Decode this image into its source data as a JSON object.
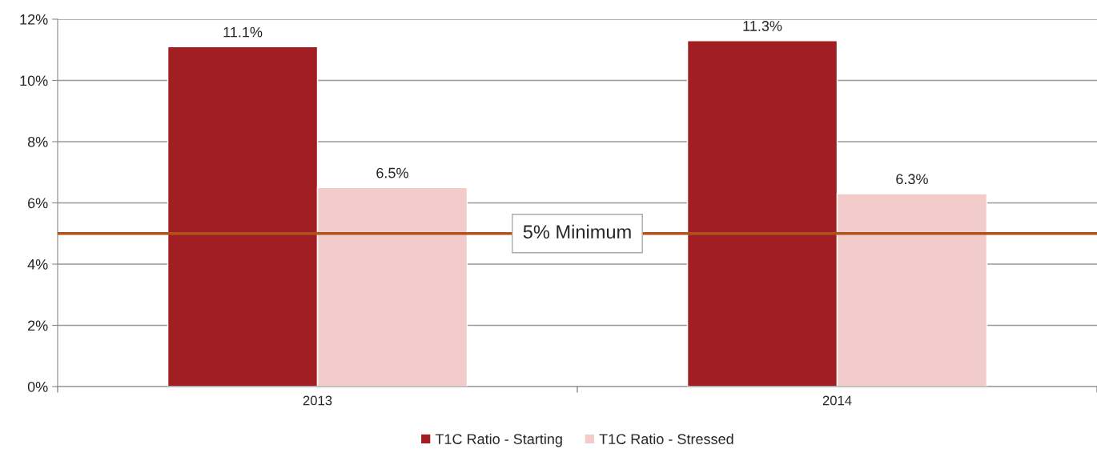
{
  "chart_data": {
    "type": "bar",
    "categories": [
      "2013",
      "2014"
    ],
    "series": [
      {
        "name": "T1C Ratio - Starting",
        "color": "#a11f22",
        "values": [
          11.1,
          11.3
        ],
        "value_labels": [
          "11.1%",
          "11.3%"
        ]
      },
      {
        "name": "T1C Ratio - Stressed",
        "color": "#f2cbcb",
        "values": [
          6.5,
          6.3
        ],
        "value_labels": [
          "6.5%",
          "6.3%"
        ]
      }
    ],
    "ylim": [
      0,
      12
    ],
    "yticks": [
      {
        "value": 0,
        "label": "0%"
      },
      {
        "value": 2,
        "label": "2%"
      },
      {
        "value": 4,
        "label": "4%"
      },
      {
        "value": 6,
        "label": "6%"
      },
      {
        "value": 8,
        "label": "8%"
      },
      {
        "value": 10,
        "label": "10%"
      },
      {
        "value": 12,
        "label": "12%"
      }
    ],
    "ref_lines": [
      {
        "axis": "y",
        "value": 5,
        "label": "5% Minimum",
        "color": "#b0521c"
      }
    ],
    "grid": "y",
    "legend": "bottom"
  }
}
